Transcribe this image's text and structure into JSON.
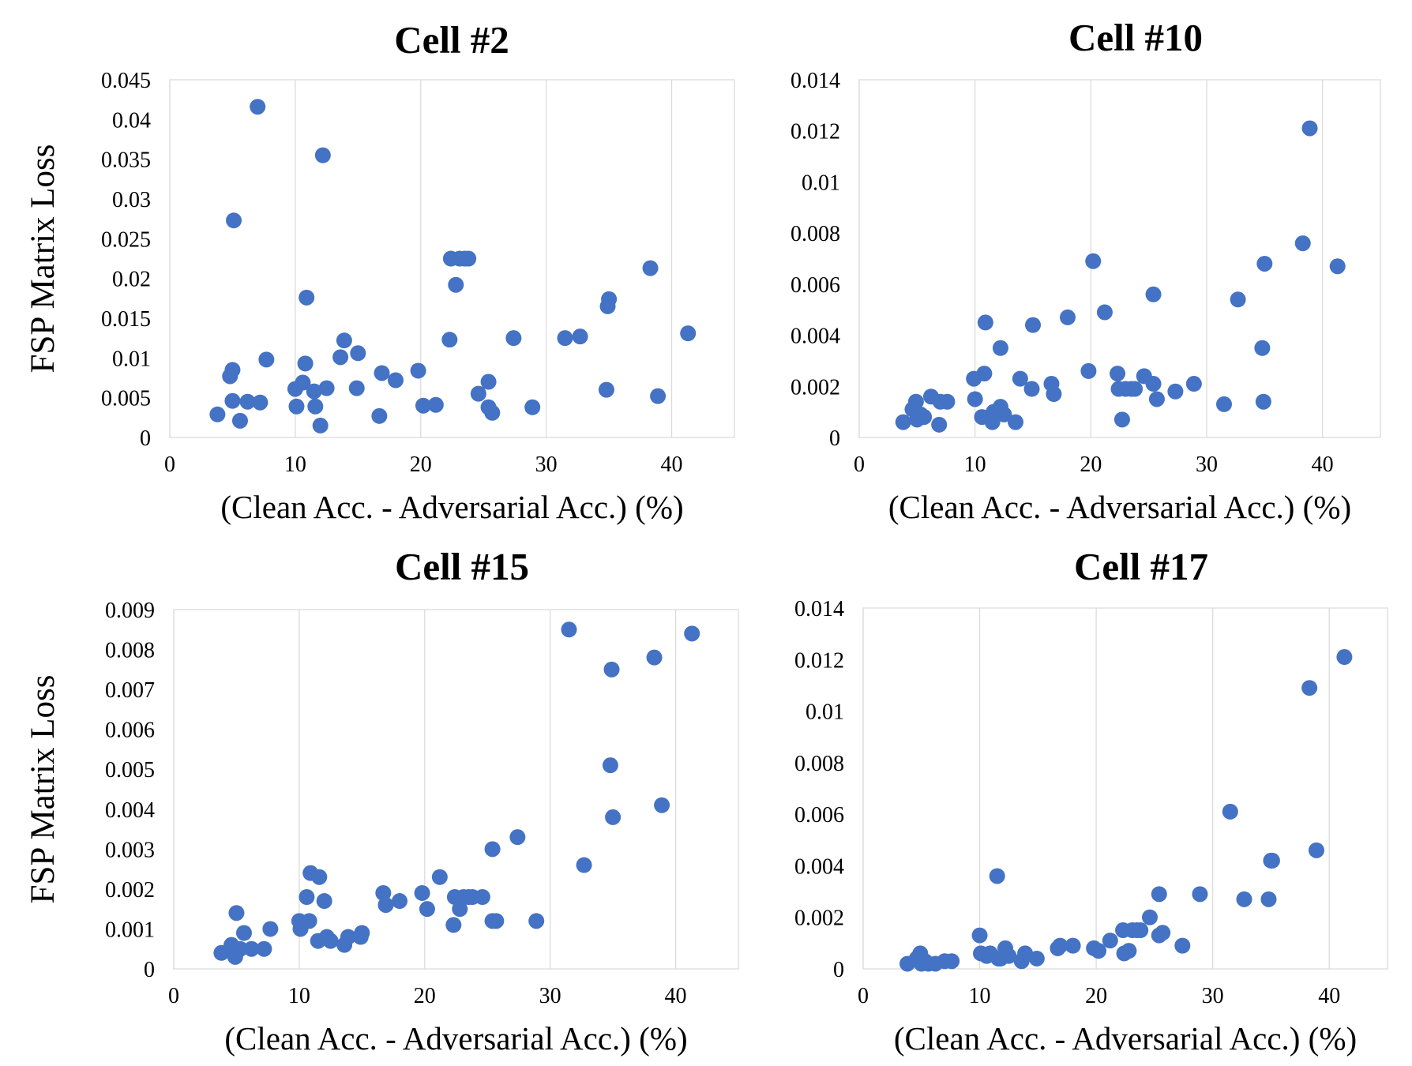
{
  "chart_data": [
    {
      "type": "scatter",
      "title": "Cell #2",
      "xlabel": "(Clean Acc. - Adversarial Acc.) (%)",
      "ylabel": "FSP Matrix Loss",
      "xlim": [
        0,
        45
      ],
      "ylim": [
        0,
        0.045
      ],
      "xticks": [
        "0",
        "10",
        "20",
        "30",
        "40"
      ],
      "yticks": [
        "0",
        "0.005",
        "0.01",
        "0.015",
        "0.02",
        "0.025",
        "0.03",
        "0.035",
        "0.04",
        "0.045"
      ],
      "grid": "vertical",
      "color": "#4472c4",
      "points": [
        [
          3.8,
          0.0029
        ],
        [
          4.8,
          0.0077
        ],
        [
          5.0,
          0.0085
        ],
        [
          5.0,
          0.0046
        ],
        [
          5.1,
          0.0273
        ],
        [
          5.6,
          0.0021
        ],
        [
          6.2,
          0.0045
        ],
        [
          7.0,
          0.0416
        ],
        [
          7.2,
          0.0044
        ],
        [
          7.7,
          0.0098
        ],
        [
          10.0,
          0.0061
        ],
        [
          10.1,
          0.0039
        ],
        [
          10.6,
          0.0069
        ],
        [
          10.8,
          0.0093
        ],
        [
          10.9,
          0.0176
        ],
        [
          11.5,
          0.0058
        ],
        [
          11.6,
          0.0039
        ],
        [
          12.0,
          0.0015
        ],
        [
          12.2,
          0.0355
        ],
        [
          12.5,
          0.0062
        ],
        [
          13.6,
          0.0101
        ],
        [
          13.9,
          0.0122
        ],
        [
          14.9,
          0.0062
        ],
        [
          15.0,
          0.0106
        ],
        [
          16.7,
          0.0027
        ],
        [
          16.9,
          0.0081
        ],
        [
          18.0,
          0.0072
        ],
        [
          19.8,
          0.0084
        ],
        [
          20.2,
          0.004
        ],
        [
          21.2,
          0.0041
        ],
        [
          22.3,
          0.0123
        ],
        [
          22.4,
          0.0225
        ],
        [
          22.8,
          0.0192
        ],
        [
          23.1,
          0.0225
        ],
        [
          23.5,
          0.0225
        ],
        [
          23.8,
          0.0225
        ],
        [
          24.6,
          0.0055
        ],
        [
          25.4,
          0.007
        ],
        [
          25.4,
          0.0038
        ],
        [
          25.7,
          0.0031
        ],
        [
          27.4,
          0.0125
        ],
        [
          28.9,
          0.0038
        ],
        [
          31.5,
          0.0125
        ],
        [
          32.7,
          0.0127
        ],
        [
          34.8,
          0.006
        ],
        [
          34.9,
          0.0165
        ],
        [
          35.0,
          0.0174
        ],
        [
          38.3,
          0.0213
        ],
        [
          38.9,
          0.0052
        ],
        [
          41.3,
          0.0131
        ]
      ]
    },
    {
      "type": "scatter",
      "title": "Cell #10",
      "xlabel": "(Clean Acc. - Adversarial Acc.) (%)",
      "ylabel": "",
      "xlim": [
        0,
        45
      ],
      "ylim": [
        0,
        0.014
      ],
      "xticks": [
        "0",
        "10",
        "20",
        "30",
        "40"
      ],
      "yticks": [
        "0",
        "0.002",
        "0.004",
        "0.006",
        "0.008",
        "0.01",
        "0.012",
        "0.014"
      ],
      "grid": "vertical",
      "color": "#4472c4",
      "points": [
        [
          3.8,
          0.0006
        ],
        [
          4.6,
          0.0011
        ],
        [
          4.9,
          0.0014
        ],
        [
          5.0,
          0.0007
        ],
        [
          5.3,
          0.0009
        ],
        [
          5.6,
          0.0008
        ],
        [
          6.2,
          0.0016
        ],
        [
          6.9,
          0.0005
        ],
        [
          7.0,
          0.0014
        ],
        [
          7.6,
          0.0014
        ],
        [
          9.9,
          0.0023
        ],
        [
          10.0,
          0.0015
        ],
        [
          10.6,
          0.0008
        ],
        [
          10.8,
          0.0025
        ],
        [
          10.9,
          0.0045
        ],
        [
          11.5,
          0.0006
        ],
        [
          11.6,
          0.001
        ],
        [
          11.8,
          0.0009
        ],
        [
          12.2,
          0.0012
        ],
        [
          12.2,
          0.0035
        ],
        [
          12.5,
          0.0009
        ],
        [
          13.5,
          0.0006
        ],
        [
          13.9,
          0.0023
        ],
        [
          14.9,
          0.0019
        ],
        [
          15.0,
          0.0044
        ],
        [
          16.6,
          0.0021
        ],
        [
          16.8,
          0.0017
        ],
        [
          18.0,
          0.0047
        ],
        [
          19.8,
          0.0026
        ],
        [
          20.2,
          0.0069
        ],
        [
          21.2,
          0.0049
        ],
        [
          22.3,
          0.0025
        ],
        [
          22.4,
          0.0019
        ],
        [
          22.7,
          0.0007
        ],
        [
          23.0,
          0.0019
        ],
        [
          23.5,
          0.0019
        ],
        [
          23.8,
          0.0019
        ],
        [
          24.6,
          0.0024
        ],
        [
          25.4,
          0.0021
        ],
        [
          25.4,
          0.0056
        ],
        [
          25.7,
          0.0015
        ],
        [
          27.3,
          0.0018
        ],
        [
          28.9,
          0.0021
        ],
        [
          31.5,
          0.0013
        ],
        [
          32.7,
          0.0054
        ],
        [
          34.8,
          0.0035
        ],
        [
          34.9,
          0.0014
        ],
        [
          35.0,
          0.0068
        ],
        [
          38.3,
          0.0076
        ],
        [
          38.9,
          0.0121
        ],
        [
          41.3,
          0.0067
        ]
      ]
    },
    {
      "type": "scatter",
      "title": "Cell #15",
      "xlabel": "(Clean Acc. - Adversarial Acc.) (%)",
      "ylabel": "FSP Matrix Loss",
      "xlim": [
        0,
        45
      ],
      "ylim": [
        0,
        0.009
      ],
      "xticks": [
        "0",
        "10",
        "20",
        "30",
        "40"
      ],
      "yticks": [
        "0",
        "0.001",
        "0.002",
        "0.003",
        "0.004",
        "0.005",
        "0.006",
        "0.007",
        "0.008",
        "0.009"
      ],
      "grid": "vertical",
      "color": "#4472c4",
      "points": [
        [
          3.8,
          0.0004
        ],
        [
          4.6,
          0.0006
        ],
        [
          4.9,
          0.0003
        ],
        [
          5.0,
          0.0014
        ],
        [
          5.3,
          0.0005
        ],
        [
          5.6,
          0.0009
        ],
        [
          6.2,
          0.0005
        ],
        [
          7.2,
          0.0005
        ],
        [
          7.7,
          0.001
        ],
        [
          10.0,
          0.0012
        ],
        [
          10.1,
          0.001
        ],
        [
          10.6,
          0.0018
        ],
        [
          10.8,
          0.0012
        ],
        [
          10.9,
          0.0024
        ],
        [
          11.5,
          0.0007
        ],
        [
          11.6,
          0.0023
        ],
        [
          12.0,
          0.0017
        ],
        [
          12.2,
          0.0008
        ],
        [
          12.5,
          0.0007
        ],
        [
          13.6,
          0.0006
        ],
        [
          13.9,
          0.0008
        ],
        [
          14.9,
          0.0008
        ],
        [
          15.0,
          0.0009
        ],
        [
          16.7,
          0.0019
        ],
        [
          16.9,
          0.0016
        ],
        [
          18.0,
          0.0017
        ],
        [
          19.8,
          0.0019
        ],
        [
          20.2,
          0.0015
        ],
        [
          21.2,
          0.0023
        ],
        [
          22.3,
          0.0011
        ],
        [
          22.4,
          0.0018
        ],
        [
          22.8,
          0.0015
        ],
        [
          23.1,
          0.0018
        ],
        [
          23.5,
          0.0018
        ],
        [
          23.8,
          0.0018
        ],
        [
          24.6,
          0.0018
        ],
        [
          25.4,
          0.0012
        ],
        [
          25.4,
          0.003
        ],
        [
          25.7,
          0.0012
        ],
        [
          27.4,
          0.0033
        ],
        [
          28.9,
          0.0012
        ],
        [
          31.5,
          0.0085
        ],
        [
          32.7,
          0.0026
        ],
        [
          34.8,
          0.0051
        ],
        [
          34.9,
          0.0075
        ],
        [
          35.0,
          0.0038
        ],
        [
          38.3,
          0.0078
        ],
        [
          38.9,
          0.0041
        ],
        [
          41.3,
          0.0084
        ]
      ]
    },
    {
      "type": "scatter",
      "title": "Cell #17",
      "xlabel": "(Clean Acc. - Adversarial Acc.) (%)",
      "ylabel": "",
      "xlim": [
        0,
        45
      ],
      "ylim": [
        0,
        0.014
      ],
      "xticks": [
        "0",
        "10",
        "20",
        "30",
        "40"
      ],
      "yticks": [
        "0",
        "0.002",
        "0.004",
        "0.006",
        "0.008",
        "0.01",
        "0.012",
        "0.014"
      ],
      "grid": "vertical",
      "color": "#4472c4",
      "points": [
        [
          3.8,
          0.0002
        ],
        [
          4.6,
          0.0004
        ],
        [
          4.9,
          0.0006
        ],
        [
          5.0,
          0.0002
        ],
        [
          5.3,
          0.0003
        ],
        [
          5.6,
          0.0002
        ],
        [
          6.2,
          0.0002
        ],
        [
          7.0,
          0.0003
        ],
        [
          7.6,
          0.0003
        ],
        [
          10.0,
          0.0013
        ],
        [
          10.1,
          0.0006
        ],
        [
          10.6,
          0.0005
        ],
        [
          10.9,
          0.0006
        ],
        [
          11.5,
          0.0036
        ],
        [
          11.6,
          0.0004
        ],
        [
          11.8,
          0.0004
        ],
        [
          12.2,
          0.0008
        ],
        [
          12.5,
          0.0005
        ],
        [
          13.6,
          0.0003
        ],
        [
          13.9,
          0.0006
        ],
        [
          14.9,
          0.0004
        ],
        [
          16.7,
          0.0008
        ],
        [
          16.9,
          0.0009
        ],
        [
          18.0,
          0.0009
        ],
        [
          19.8,
          0.0008
        ],
        [
          20.2,
          0.0007
        ],
        [
          21.2,
          0.0011
        ],
        [
          22.3,
          0.0015
        ],
        [
          22.4,
          0.0006
        ],
        [
          22.8,
          0.0007
        ],
        [
          23.1,
          0.0015
        ],
        [
          23.5,
          0.0015
        ],
        [
          23.8,
          0.0015
        ],
        [
          24.6,
          0.002
        ],
        [
          25.4,
          0.0013
        ],
        [
          25.4,
          0.0029
        ],
        [
          25.7,
          0.0014
        ],
        [
          27.4,
          0.0009
        ],
        [
          28.9,
          0.0029
        ],
        [
          31.5,
          0.0061
        ],
        [
          32.7,
          0.0027
        ],
        [
          34.8,
          0.0027
        ],
        [
          35.0,
          0.0042
        ],
        [
          35.1,
          0.0042
        ],
        [
          38.3,
          0.0109
        ],
        [
          38.9,
          0.0046
        ],
        [
          41.3,
          0.0121
        ]
      ]
    }
  ]
}
